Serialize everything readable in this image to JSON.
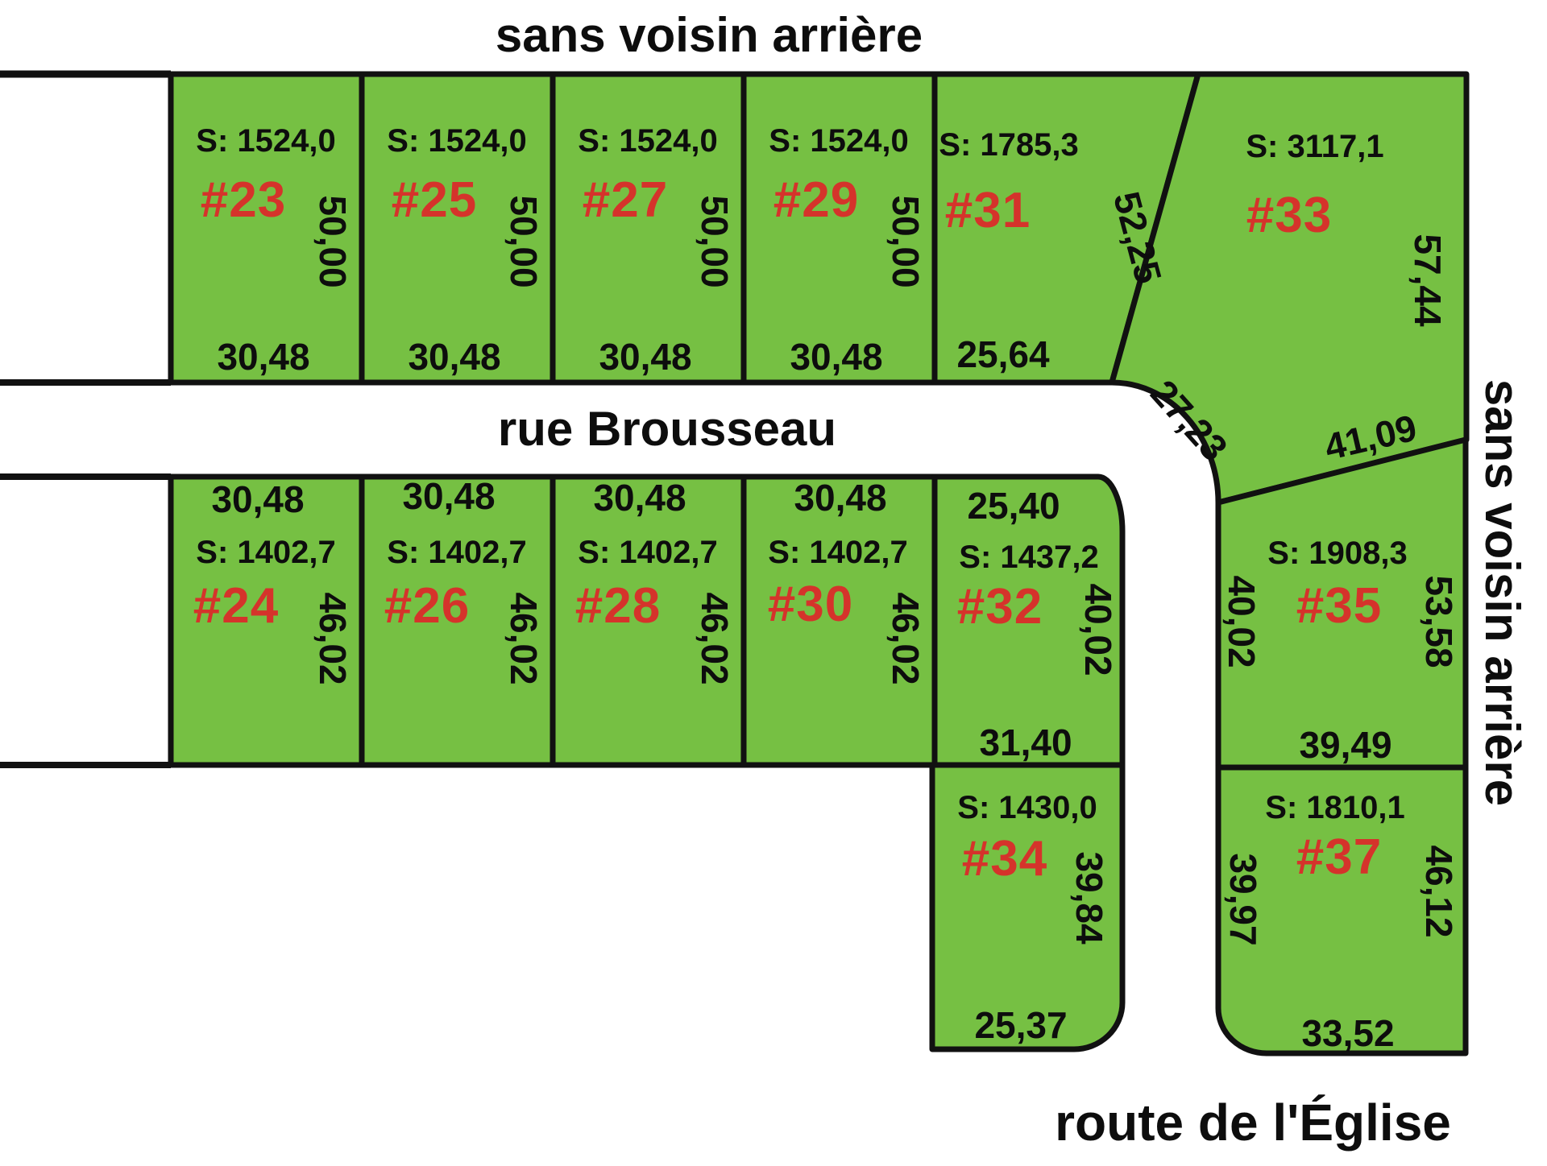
{
  "titles": {
    "top": "sans voisin arrière",
    "right": "sans voisin arrière",
    "street": "rue Brousseau",
    "bottom_road": "route de l'Église"
  },
  "colors": {
    "lot_fill": "#76c043",
    "lot_number": "#d5332b",
    "line": "#111111",
    "background": "#ffffff"
  },
  "lots": [
    {
      "id": "23",
      "number": "#23",
      "surface": "S: 1524,0",
      "width_label": "30,48",
      "depth_label": "50,00"
    },
    {
      "id": "25",
      "number": "#25",
      "surface": "S: 1524,0",
      "width_label": "30,48",
      "depth_label": "50,00"
    },
    {
      "id": "27",
      "number": "#27",
      "surface": "S: 1524,0",
      "width_label": "30,48",
      "depth_label": "50,00"
    },
    {
      "id": "29",
      "number": "#29",
      "surface": "S: 1524,0",
      "width_label": "30,48",
      "depth_label": "50,00"
    },
    {
      "id": "31",
      "number": "#31",
      "surface": "S: 1785,3",
      "width_label": "25,64",
      "diagonal_label": "52,25"
    },
    {
      "id": "33",
      "number": "#33",
      "surface": "S: 3117,1",
      "right_label": "57,44",
      "curve_label": "27,23",
      "south_label": "41,09"
    },
    {
      "id": "24",
      "number": "#24",
      "surface": "S: 1402,7",
      "width_label": "30,48",
      "depth_label": "46,02"
    },
    {
      "id": "26",
      "number": "#26",
      "surface": "S: 1402,7",
      "width_label": "30,48",
      "depth_label": "46,02"
    },
    {
      "id": "28",
      "number": "#28",
      "surface": "S: 1402,7",
      "width_label": "30,48",
      "depth_label": "46,02"
    },
    {
      "id": "30",
      "number": "#30",
      "surface": "S: 1402,7",
      "width_label": "30,48",
      "depth_label": "46,02"
    },
    {
      "id": "32",
      "number": "#32",
      "surface": "S: 1437,2",
      "top_label": "25,40",
      "right_label": "40,02",
      "bottom_label": "31,40"
    },
    {
      "id": "34",
      "number": "#34",
      "surface": "S: 1430,0",
      "right_label": "39,84",
      "bottom_label": "25,37"
    },
    {
      "id": "35",
      "number": "#35",
      "surface": "S: 1908,3",
      "left_label": "40,02",
      "right_label": "53,58",
      "bottom_label": "39,49"
    },
    {
      "id": "37",
      "number": "#37",
      "surface": "S: 1810,1",
      "left_label": "39,97",
      "right_label": "46,12",
      "bottom_label": "33,52"
    }
  ]
}
